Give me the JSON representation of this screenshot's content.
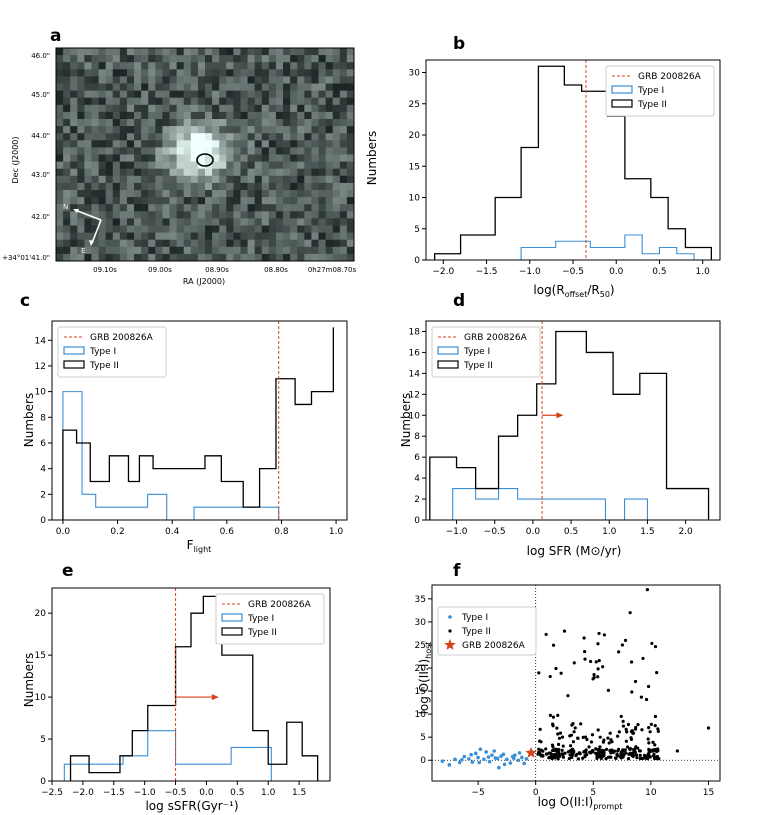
{
  "colors": {
    "grb": "#d4441c",
    "type1": "#3a8fd6",
    "type2": "#000000",
    "frame": "#000000"
  },
  "chart_data": [
    {
      "id": "a",
      "type": "image",
      "panel_label": "a",
      "xlabel": "RA (J2000)",
      "ylabel": "Dec (J2000)",
      "xticks": [
        "09.10s",
        "09.00s",
        "08.90s",
        "08.80s",
        "0h27m08.70s"
      ],
      "yticks": [
        "46.0\"",
        "45.0\"",
        "44.0\"",
        "43.0\"",
        "42.0\"",
        "+34°01'41.0\""
      ],
      "compass": {
        "north": "N",
        "east": "E"
      }
    },
    {
      "id": "b",
      "type": "histogram",
      "panel_label": "b",
      "xlabel": "log(R_offset/R_50)",
      "ylabel": "Numbers",
      "xlim": [
        -2.2,
        1.2
      ],
      "ylim": [
        0,
        32
      ],
      "xticks": [
        -2.0,
        -1.5,
        -1.0,
        -0.5,
        0.0,
        0.5,
        1.0
      ],
      "yticks": [
        0,
        5,
        10,
        15,
        20,
        25,
        30
      ],
      "xtick_labels": [
        "−2.0",
        "−1.5",
        "−1.0",
        "−0.5",
        "0.0",
        "0.5",
        "1.0"
      ],
      "legend_position": "upper-right",
      "legend": [
        "GRB 200826A",
        "Type I",
        "Type II"
      ],
      "grb_line": -0.35,
      "series": [
        {
          "name": "Type I",
          "edges": [
            -1.1,
            -0.9,
            -0.7,
            -0.5,
            -0.3,
            -0.1,
            0.1,
            0.3,
            0.5,
            0.7,
            0.9
          ],
          "counts": [
            2,
            2,
            3,
            3,
            2,
            2,
            4,
            1,
            2,
            1
          ]
        },
        {
          "name": "Type II",
          "edges": [
            -2.1,
            -1.8,
            -1.4,
            -1.1,
            -0.9,
            -0.6,
            -0.4,
            -0.1,
            0.1,
            0.4,
            0.6,
            0.8,
            1.1
          ],
          "counts": [
            1,
            4,
            10,
            18,
            31,
            28,
            27,
            23,
            13,
            10,
            5,
            2
          ]
        }
      ]
    },
    {
      "id": "c",
      "type": "histogram",
      "panel_label": "c",
      "xlabel": "F_light",
      "ylabel": "Numbers",
      "xlim": [
        -0.04,
        1.04
      ],
      "ylim": [
        0,
        15.5
      ],
      "xticks": [
        0.0,
        0.2,
        0.4,
        0.6,
        0.8,
        1.0
      ],
      "yticks": [
        0,
        2,
        4,
        6,
        8,
        10,
        12,
        14
      ],
      "xtick_labels": [
        "0.0",
        "0.2",
        "0.4",
        "0.6",
        "0.8",
        "1.0"
      ],
      "legend_position": "upper-left",
      "legend": [
        "GRB 200826A",
        "Type I",
        "Type II"
      ],
      "grb_line": 0.79,
      "series": [
        {
          "name": "Type I",
          "edges": [
            0.0,
            0.07,
            0.12,
            0.24,
            0.31,
            0.38,
            0.48,
            0.79
          ],
          "counts": [
            10,
            2,
            1,
            1,
            2,
            0,
            1
          ]
        },
        {
          "name": "Type II",
          "edges": [
            0.0,
            0.05,
            0.1,
            0.17,
            0.24,
            0.28,
            0.33,
            0.38,
            0.45,
            0.52,
            0.58,
            0.66,
            0.72,
            0.78,
            0.85,
            0.91,
            0.99
          ],
          "counts": [
            7,
            6,
            3,
            5,
            3,
            5,
            4,
            4,
            4,
            5,
            3,
            1,
            4,
            11,
            9,
            10,
            15
          ]
        }
      ]
    },
    {
      "id": "d",
      "type": "histogram",
      "panel_label": "d",
      "xlabel": "log SFR (M⊙/yr)",
      "ylabel": "Numbers",
      "xlim": [
        -1.4,
        2.45
      ],
      "ylim": [
        0,
        19
      ],
      "xticks": [
        -1.0,
        -0.5,
        0.0,
        0.5,
        1.0,
        1.5,
        2.0
      ],
      "yticks": [
        0,
        2,
        4,
        6,
        8,
        10,
        12,
        14,
        16,
        18
      ],
      "xtick_labels": [
        "−1.0",
        "−0.5",
        "0.0",
        "0.5",
        "1.0",
        "1.5",
        "2.0"
      ],
      "legend_position": "upper-left",
      "legend": [
        "GRB 200826A",
        "Type I",
        "Type II"
      ],
      "grb_line": 0.12,
      "arrow": {
        "from": 0.12,
        "to": 0.4,
        "y": 10
      },
      "series": [
        {
          "name": "Type I",
          "edges": [
            -1.05,
            -0.75,
            -0.45,
            -0.2,
            0.95,
            1.2,
            1.5
          ],
          "counts": [
            3,
            2,
            3,
            2,
            0,
            2
          ]
        },
        {
          "name": "Type II",
          "edges": [
            -1.35,
            -1.0,
            -0.75,
            -0.45,
            -0.2,
            0.05,
            0.3,
            0.7,
            1.05,
            1.4,
            1.75,
            2.0,
            2.3
          ],
          "counts": [
            6,
            5,
            3,
            8,
            10,
            13,
            18,
            16,
            12,
            14,
            3,
            3
          ]
        }
      ]
    },
    {
      "id": "e",
      "type": "histogram",
      "panel_label": "e",
      "xlabel": "log sSFR(Gyr⁻¹)",
      "ylabel": "Numbers",
      "xlim": [
        -2.5,
        2.0
      ],
      "ylim": [
        0,
        23
      ],
      "xticks": [
        -2.5,
        -2.0,
        -1.5,
        -1.0,
        -0.5,
        0.0,
        0.5,
        1.0,
        1.5
      ],
      "yticks": [
        0,
        5,
        10,
        15,
        20
      ],
      "xtick_labels": [
        "−2.5",
        "−2.0",
        "−1.5",
        "−1.0",
        "−0.5",
        "0.0",
        "0.5",
        "1.0",
        "1.5"
      ],
      "legend_position": "upper-right",
      "legend": [
        "GRB 200826A",
        "Type I",
        "Type II"
      ],
      "grb_line": -0.5,
      "arrow": {
        "from": -0.5,
        "to": 0.2,
        "y": 10
      },
      "series": [
        {
          "name": "Type I",
          "edges": [
            -2.3,
            -1.35,
            -0.95,
            -0.5,
            0.4,
            1.05
          ],
          "counts": [
            2,
            3,
            6,
            2,
            4
          ]
        },
        {
          "name": "Type II",
          "edges": [
            -2.2,
            -1.9,
            -1.4,
            -1.2,
            -0.95,
            -0.5,
            -0.25,
            -0.05,
            0.25,
            0.75,
            1.0,
            1.3,
            1.55,
            1.8
          ],
          "counts": [
            3,
            1,
            3,
            6,
            9,
            16,
            20,
            22,
            15,
            6,
            2,
            7,
            3
          ]
        }
      ]
    },
    {
      "id": "f",
      "type": "scatter",
      "panel_label": "f",
      "xlabel": "log O(II:I)_prompt",
      "ylabel": "log O(II:I)_host",
      "xlim": [
        -9,
        16
      ],
      "ylim": [
        -4.5,
        38
      ],
      "xticks": [
        -5,
        0,
        5,
        10,
        15
      ],
      "yticks": [
        0,
        5,
        10,
        15,
        20,
        25,
        30,
        35
      ],
      "xtick_labels": [
        "−5",
        "0",
        "5",
        "10",
        "15"
      ],
      "legend_position": "upper-left",
      "legend": [
        "Type I",
        "Type II",
        "GRB 200826A"
      ],
      "grb_point": {
        "x": -0.4,
        "y": 1.6
      },
      "series": [
        {
          "name": "Type I",
          "x": [
            -8.1,
            -7.5,
            -7.0,
            -6.6,
            -6.2,
            -5.8,
            -5.5,
            -5.2,
            -5.0,
            -4.8,
            -4.5,
            -4.3,
            -4.0,
            -3.8,
            -3.5,
            -3.2,
            -3.0,
            -2.8,
            -2.5,
            -2.2,
            -2.0,
            -1.8,
            -1.5,
            -1.2,
            -1.0,
            -0.8,
            -5.6,
            -4.9,
            -4.1,
            -3.6,
            -2.7,
            -1.9,
            -6.4,
            -3.3,
            -1.4
          ],
          "y": [
            -0.2,
            -1.0,
            0.2,
            -0.5,
            0.8,
            0.3,
            -0.4,
            1.5,
            0.6,
            2.4,
            0.2,
            1.8,
            -0.3,
            1.1,
            0.5,
            -1.6,
            0.9,
            1.3,
            0.2,
            -0.6,
            0.8,
            1.1,
            0.0,
            0.6,
            -0.7,
            0.3,
            1.2,
            -0.5,
            0.7,
            2.0,
            -0.9,
            0.4,
            0.1,
            0.4,
            1.6
          ]
        }
      ]
    }
  ]
}
